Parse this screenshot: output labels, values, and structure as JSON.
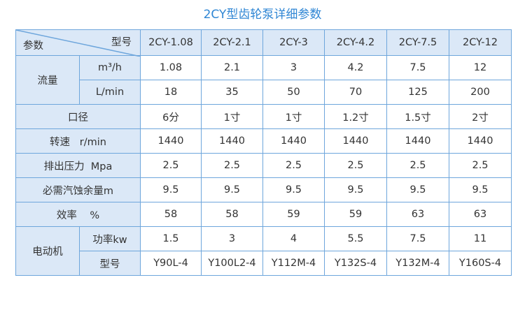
{
  "title": "2CY型齿轮泵详细参数",
  "table": {
    "corner": {
      "top": "型号",
      "bottom": "参数"
    },
    "columns": [
      "2CY-1.08",
      "2CY-2.1",
      "2CY-3",
      "2CY-4.2",
      "2CY-7.5",
      "2CY-12"
    ],
    "rows": [
      {
        "label": "流量",
        "sub": [
          {
            "label": "m³/h",
            "cells": [
              "1.08",
              "2.1",
              "3",
              "4.2",
              "7.5",
              "12"
            ]
          },
          {
            "label": "L/min",
            "cells": [
              "18",
              "35",
              "50",
              "70",
              "125",
              "200"
            ]
          }
        ]
      },
      {
        "label": "口径",
        "cells": [
          "6分",
          "1寸",
          "1寸",
          "1.2寸",
          "1.5寸",
          "2寸"
        ]
      },
      {
        "label": "转速   r/min",
        "cells": [
          "1440",
          "1440",
          "1440",
          "1440",
          "1440",
          "1440"
        ]
      },
      {
        "label": "排出压力  Mpa",
        "cells": [
          "2.5",
          "2.5",
          "2.5",
          "2.5",
          "2.5",
          "2.5"
        ]
      },
      {
        "label": "必需汽蚀余量m",
        "cells": [
          "9.5",
          "9.5",
          "9.5",
          "9.5",
          "9.5",
          "9.5"
        ]
      },
      {
        "label": "效率    %",
        "cells": [
          "58",
          "58",
          "59",
          "59",
          "63",
          "63"
        ]
      },
      {
        "label": "电动机",
        "sub": [
          {
            "label": "功率kw",
            "cells": [
              "1.5",
              "3",
              "4",
              "5.5",
              "7.5",
              "11"
            ]
          },
          {
            "label": "型号",
            "cells": [
              "Y90L-4",
              "Y100L2-4",
              "Y112M-4",
              "Y132S-4",
              "Y132M-4",
              "Y160S-4"
            ]
          }
        ]
      }
    ]
  }
}
